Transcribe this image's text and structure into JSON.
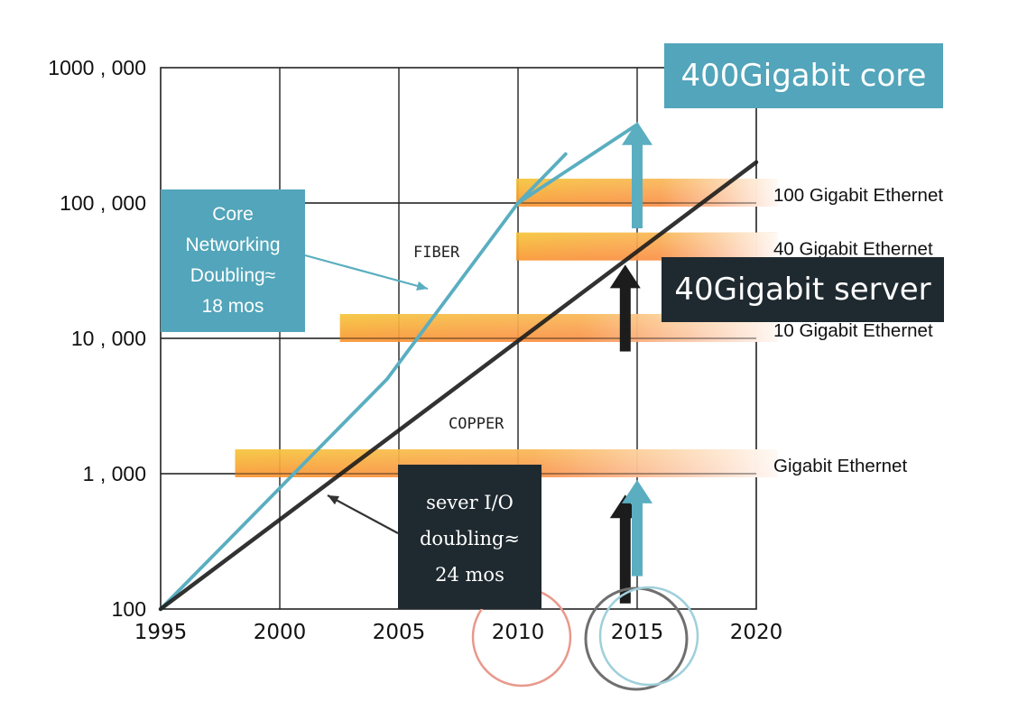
{
  "chart_data": {
    "type": "line",
    "x_ticks": [
      "1995",
      "2000",
      "2005",
      "2010",
      "2015",
      "2020"
    ],
    "y_ticks": [
      "100",
      "1 , 000",
      "10 , 000",
      "100 , 000",
      "1000 , 000"
    ],
    "xlim": [
      1995,
      2020
    ],
    "ylim": [
      100,
      1000000
    ],
    "y_scale": "log",
    "grid": true,
    "series": [
      {
        "name": "FIBER",
        "color": "#5aaec0",
        "points": [
          [
            1995,
            100
          ],
          [
            2004.5,
            5000
          ],
          [
            2010,
            100000
          ],
          [
            2012,
            230000
          ]
        ]
      },
      {
        "name": "",
        "color": "#5aaec0",
        "points": [
          [
            2010,
            100000
          ],
          [
            2015,
            380000
          ]
        ]
      },
      {
        "name": "COPPER",
        "color": "#1c1c1c",
        "points": [
          [
            1995,
            100
          ],
          [
            2020,
            200000
          ]
        ]
      }
    ],
    "bands": [
      {
        "label": "100 Gigabit Ethernet",
        "y": 100000,
        "x_start": 2010
      },
      {
        "label": "40 Gigabit Ethernet",
        "y": 40000,
        "x_start": 2010
      },
      {
        "label": "10 Gigabit Ethernet",
        "y": 10000,
        "x_start": 2002.6
      },
      {
        "label": "Gigabit Ethernet",
        "y": 1000,
        "x_start": 1998.2
      }
    ],
    "arrows": [
      {
        "color": "#5aaec0",
        "x": 2015,
        "y_from": 65000,
        "y_to": 400000
      },
      {
        "color": "#1c1c1c",
        "x": 2014.5,
        "y_from": 8000,
        "y_to": 35000
      },
      {
        "color": "#1c1c1c",
        "x": 2014.5,
        "y_from": 110,
        "y_to": 700
      },
      {
        "color": "#5aaec0",
        "x": 2015,
        "y_from": 175,
        "y_to": 900
      }
    ],
    "annotations": {
      "core_label": "400Gigabit core",
      "server_label": "40Gigabit server",
      "fiber_label": "FIBER",
      "copper_label": "COPPER",
      "core_note": [
        "Core",
        "Networking",
        "Doubling≈",
        "18 mos"
      ],
      "server_note": [
        "sever I/O",
        "doubling≈",
        "24 mos"
      ]
    },
    "colors": {
      "teal": "#52a5ba",
      "dark": "#1f2a30",
      "band_orange": "#f7701f",
      "band_yellow": "#f2c132",
      "circle_red": "#e8998c",
      "circle_gray": "#6f6f6f",
      "circle_blue": "#9fcfdb"
    }
  }
}
